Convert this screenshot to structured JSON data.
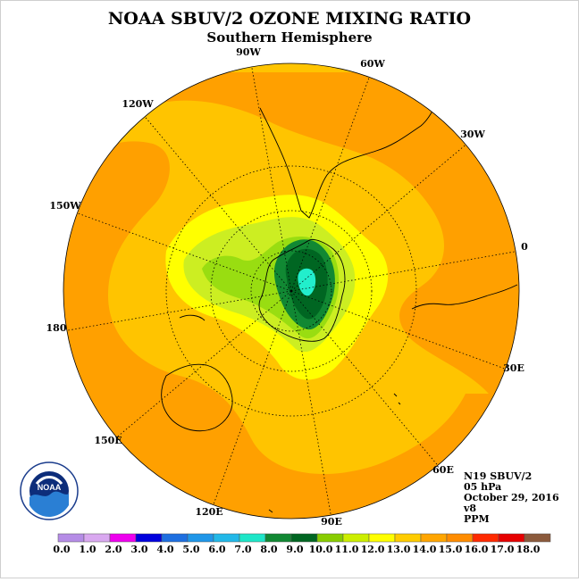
{
  "title": "NOAA SBUV/2 OZONE MIXING RATIO",
  "subtitle": "Southern Hemisphere",
  "longitude_labels": [
    "90W",
    "60W",
    "30W",
    "0",
    "30E",
    "60E",
    "90E",
    "120E",
    "150E",
    "180",
    "150W",
    "120W"
  ],
  "info": {
    "satellite": "N19 SBUV/2",
    "pressure": "05 hPa",
    "date": "October 29, 2016",
    "version": "v8",
    "units": "PPM"
  },
  "logo_text": "NOAA",
  "colorbar": {
    "labels": [
      "0.0",
      "1.0",
      "2.0",
      "3.0",
      "4.0",
      "5.0",
      "6.0",
      "7.0",
      "8.0",
      "9.0",
      "10.0",
      "11.0",
      "12.0",
      "13.0",
      "14.0",
      "15.0",
      "16.0",
      "17.0",
      "18.0"
    ],
    "colors": [
      "#b58ce6",
      "#d9a8f0",
      "#ee00ee",
      "#0000dd",
      "#1e6fe0",
      "#1f96e8",
      "#22b8e8",
      "#1ee6c8",
      "#118833",
      "#006622",
      "#88cc00",
      "#ccee00",
      "#ffff00",
      "#ffcc00",
      "#ffa500",
      "#ff8c00",
      "#ff2a00",
      "#e60000",
      "#8b5a3c"
    ]
  },
  "map_colors": {
    "background": "#ffc400",
    "orange": "#ffa000",
    "yellow": "#ffff00",
    "light_green": "#ccee22",
    "green": "#99dd11",
    "dark_green": "#118833",
    "darkest_green": "#006622",
    "cyan": "#22eecc"
  }
}
